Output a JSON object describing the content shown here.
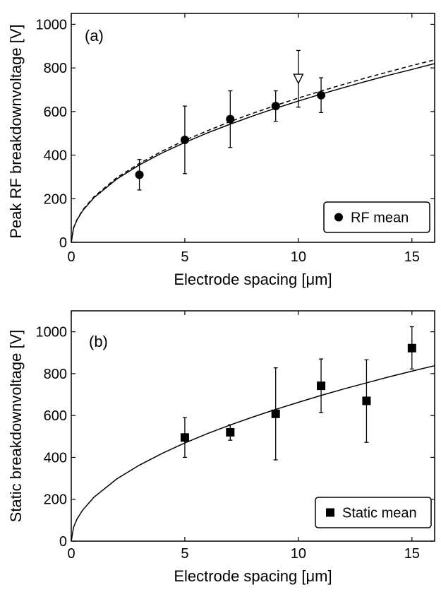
{
  "chart_data": [
    {
      "type": "scatter",
      "panel_label": "(a)",
      "xlabel": "Electrode spacing [μm]",
      "ylabel": "Peak RF breakdownvoltage [V]",
      "xlim": [
        0,
        16
      ],
      "ylim": [
        0,
        1050
      ],
      "xticks": [
        0,
        5,
        10,
        15
      ],
      "yticks": [
        0,
        200,
        400,
        600,
        800,
        1000
      ],
      "grid": false,
      "legend_position": "bottom-right",
      "series": [
        {
          "name": "RF mean",
          "kind": "points",
          "marker": "circle",
          "color": "#000000",
          "x": [
            3,
            5,
            7,
            9,
            11
          ],
          "y": [
            310,
            470,
            565,
            625,
            675
          ],
          "y_err_low": [
            240,
            315,
            435,
            555,
            595
          ],
          "y_err_high": [
            380,
            625,
            695,
            695,
            755
          ]
        },
        {
          "kind": "points",
          "marker": "triangle-down-open",
          "color": "#000000",
          "x": [
            10
          ],
          "y": [
            750
          ],
          "y_err_low": [
            620
          ],
          "y_err_high": [
            880
          ]
        },
        {
          "kind": "curve",
          "style": "solid",
          "color": "#000000",
          "x": [
            0,
            0.1,
            0.25,
            0.5,
            1,
            2,
            3,
            4,
            5,
            6,
            7,
            8,
            9,
            10,
            11,
            12,
            13,
            14,
            15,
            16
          ],
          "y": [
            0,
            65,
            102,
            145,
            205,
            290,
            355,
            410,
            458,
            502,
            542,
            580,
            615,
            648,
            680,
            710,
            739,
            767,
            793,
            820
          ]
        },
        {
          "kind": "curve",
          "style": "dashed",
          "color": "#000000",
          "x": [
            0,
            0.1,
            0.25,
            0.5,
            1,
            2,
            3,
            4,
            5,
            6,
            7,
            8,
            9,
            10,
            11,
            12,
            13,
            14,
            15,
            16
          ],
          "y": [
            0,
            66,
            104,
            148,
            209,
            296,
            362,
            418,
            468,
            512,
            554,
            592,
            628,
            662,
            694,
            725,
            755,
            783,
            811,
            837
          ]
        }
      ]
    },
    {
      "type": "scatter",
      "panel_label": "(b)",
      "xlabel": "Electrode spacing [μm]",
      "ylabel": "Static breakdownvoltage [V]",
      "xlim": [
        0,
        16
      ],
      "ylim": [
        0,
        1100
      ],
      "xticks": [
        0,
        5,
        10,
        15
      ],
      "yticks": [
        0,
        200,
        400,
        600,
        800,
        1000
      ],
      "grid": false,
      "legend_position": "bottom-right",
      "series": [
        {
          "name": "Static mean",
          "kind": "points",
          "marker": "square",
          "color": "#000000",
          "x": [
            5,
            7,
            9,
            11,
            13,
            15
          ],
          "y": [
            495,
            520,
            608,
            742,
            670,
            922
          ],
          "y_err_low": [
            400,
            482,
            388,
            614,
            472,
            822
          ],
          "y_err_high": [
            590,
            556,
            828,
            870,
            866,
            1024
          ]
        },
        {
          "kind": "curve",
          "style": "solid",
          "color": "#000000",
          "x": [
            0,
            0.1,
            0.25,
            0.5,
            1,
            2,
            3,
            4,
            5,
            6,
            7,
            8,
            9,
            10,
            11,
            12,
            13,
            14,
            15,
            16
          ],
          "y": [
            0,
            66,
            105,
            148,
            210,
            297,
            363,
            419,
            469,
            514,
            555,
            593,
            629,
            663,
            696,
            727,
            756,
            785,
            812,
            838
          ]
        }
      ]
    }
  ]
}
